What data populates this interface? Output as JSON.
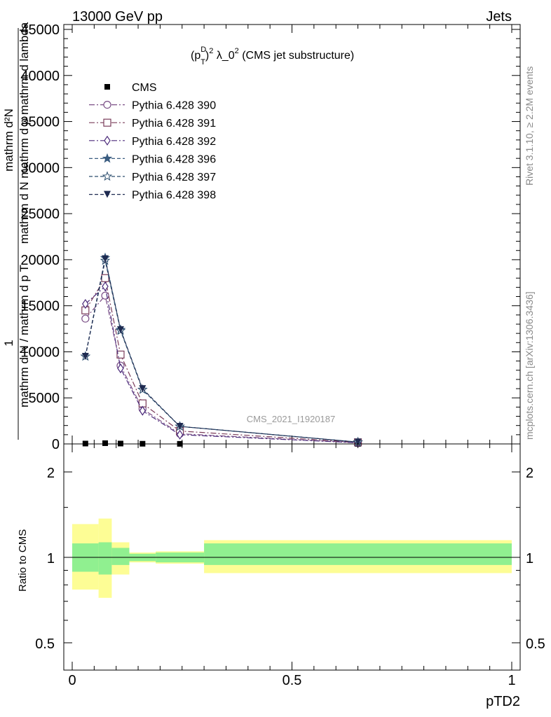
{
  "header": {
    "left": "13000 GeV pp",
    "right": "Jets"
  },
  "side_text": {
    "rivet": "Rivet 3.1.10, ≥ 2.2M events",
    "mcplots": "mcplots.cern.ch [arXiv:1306.3436]"
  },
  "watermark": "CMS_2021_I1920187",
  "chart_data": [
    {
      "type": "line",
      "title": "(p_T^D)^2 λ_0^2 (CMS jet substructure)",
      "title_parts": {
        "a": "(p",
        "sup1": "D",
        "sub1": "T",
        "b": ")",
        "sup2": "2",
        "c": " λ_0",
        "sup3": "2",
        "d": " (CMS jet substructure)"
      },
      "ylabel": "1 / mathrm d N / mathrm d p_T mathrm d^2N / mathrm d p_T mathrm d lambda",
      "ylabel_lines": [
        "mathrm d²N",
        "mathrm d N  mathrm d p  mathrm d lambda",
        "1",
        "mathrm d N / mathrm d p   T"
      ],
      "xlim": [
        0,
        1
      ],
      "ylim": [
        0,
        45000
      ],
      "y_ticks": [
        0,
        5000,
        10000,
        15000,
        20000,
        25000,
        30000,
        35000,
        40000,
        45000
      ],
      "y_tick_labels": [
        "0",
        "5000",
        "10000",
        "15000",
        "20000",
        "25000",
        "30000",
        "35000",
        "40000",
        "45000"
      ],
      "x": [
        0.03,
        0.075,
        0.11,
        0.16,
        0.245,
        0.65
      ],
      "legend_position": "top-left",
      "series": [
        {
          "name": "CMS",
          "marker": "filled-square",
          "dash": "none",
          "color": "#000000",
          "values": [
            40,
            80,
            40,
            20,
            10,
            2
          ]
        },
        {
          "name": "Pythia 6.428 390",
          "marker": "open-circle",
          "dash": "dashdot",
          "color": "#7a4e86",
          "values": [
            13600,
            16100,
            8500,
            3800,
            1100,
            140
          ]
        },
        {
          "name": "Pythia 6.428 391",
          "marker": "open-square",
          "dash": "dashdot",
          "color": "#7a3c5a",
          "values": [
            14500,
            18000,
            9700,
            4400,
            1400,
            170
          ]
        },
        {
          "name": "Pythia 6.428 392",
          "marker": "open-diamond",
          "dash": "dashdot",
          "color": "#4b2a7a",
          "values": [
            15200,
            17100,
            8200,
            3600,
            1000,
            120
          ]
        },
        {
          "name": "Pythia 6.428 396",
          "marker": "filled-star",
          "dash": "dashed",
          "color": "#3a5c80",
          "values": [
            9500,
            20200,
            12400,
            5900,
            1900,
            200
          ]
        },
        {
          "name": "Pythia 6.428 397",
          "marker": "open-star",
          "dash": "dashed",
          "color": "#2c4e6e",
          "values": [
            9500,
            19900,
            12300,
            5900,
            1900,
            200
          ]
        },
        {
          "name": "Pythia 6.428 398",
          "marker": "filled-triangle-down",
          "dash": "dashed",
          "color": "#1e2a50",
          "values": [
            9500,
            20100,
            12400,
            6000,
            1900,
            200
          ]
        }
      ]
    },
    {
      "type": "area",
      "ylabel": "Ratio to CMS",
      "xlabel": "pTD2",
      "xlim": [
        0,
        1
      ],
      "ylim": [
        0.4,
        2.4
      ],
      "y_log": true,
      "y_ticks": [
        0.5,
        1,
        2
      ],
      "y_tick_labels": [
        "0.5",
        "1",
        "2"
      ],
      "x_ticks": [
        0,
        0.5,
        1
      ],
      "x_tick_labels": [
        "0",
        "0.5",
        "1"
      ],
      "bins": [
        [
          0,
          0.06
        ],
        [
          0.06,
          0.09
        ],
        [
          0.09,
          0.13
        ],
        [
          0.13,
          0.19
        ],
        [
          0.19,
          0.3
        ],
        [
          0.3,
          1.0
        ]
      ],
      "band_inner": {
        "color": "#90f090",
        "low": [
          0.89,
          0.87,
          0.94,
          0.97,
          0.96,
          0.94
        ],
        "high": [
          1.12,
          1.13,
          1.08,
          1.03,
          1.04,
          1.12
        ]
      },
      "band_outer": {
        "color": "#fdfd95",
        "low": [
          0.77,
          0.72,
          0.87,
          0.96,
          0.95,
          0.88
        ],
        "high": [
          1.31,
          1.37,
          1.13,
          1.04,
          1.05,
          1.15
        ]
      },
      "reference_line": 1
    }
  ]
}
